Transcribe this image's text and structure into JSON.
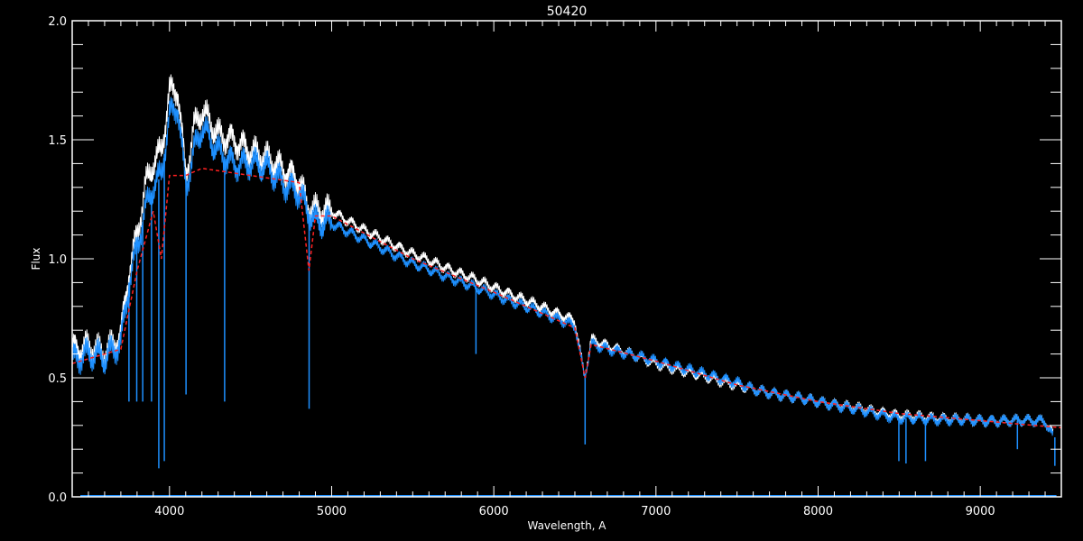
{
  "chart_data": {
    "type": "line",
    "title": "50420",
    "xlabel": "Wavelength, A",
    "ylabel": "Flux",
    "xlim": [
      3400,
      9500
    ],
    "ylim": [
      0.0,
      2.0
    ],
    "xticks": [
      4000,
      5000,
      6000,
      7000,
      8000,
      9000
    ],
    "xtick_labels": [
      "4000",
      "5000",
      "6000",
      "7000",
      "8000",
      "9000"
    ],
    "yticks": [
      0.0,
      0.5,
      1.0,
      1.5,
      2.0
    ],
    "ytick_labels": [
      "0.0",
      "0.5",
      "1.0",
      "1.5",
      "2.0"
    ],
    "grid": false,
    "background": "#000000",
    "series": [
      {
        "color": "#ffffff",
        "x": [
          3400,
          3500,
          3600,
          3700,
          3750,
          3800,
          3850,
          3900,
          3950,
          4000,
          4050,
          4100,
          4150,
          4200,
          4300,
          4400,
          4500,
          4600,
          4700,
          4800,
          4850,
          4900,
          5000,
          5200,
          5500,
          6000,
          6500,
          6560,
          6600,
          7000,
          7500,
          7600,
          8000,
          8500,
          9000,
          9400,
          9450
        ],
        "y": [
          0.62,
          0.63,
          0.6,
          0.68,
          0.95,
          1.1,
          1.3,
          1.4,
          1.45,
          1.7,
          1.72,
          1.35,
          1.55,
          1.62,
          1.52,
          1.5,
          1.45,
          1.42,
          1.38,
          1.33,
          1.22,
          1.2,
          1.2,
          1.12,
          1.02,
          0.88,
          0.74,
          0.5,
          0.66,
          0.56,
          0.47,
          0.45,
          0.4,
          0.34,
          0.32,
          0.32,
          0.26
        ]
      },
      {
        "color": "#1e90ff",
        "x": [
          3400,
          3500,
          3600,
          3700,
          3750,
          3800,
          3850,
          3900,
          3950,
          4000,
          4050,
          4100,
          4150,
          4200,
          4300,
          4400,
          4500,
          4600,
          4700,
          4800,
          4850,
          4900,
          5000,
          5200,
          5500,
          6000,
          6500,
          6560,
          6600,
          7000,
          7500,
          7600,
          8000,
          8500,
          9000,
          9400,
          9450
        ],
        "y": [
          0.58,
          0.6,
          0.58,
          0.65,
          0.9,
          1.05,
          1.2,
          1.3,
          1.35,
          1.6,
          1.65,
          1.3,
          1.45,
          1.55,
          1.45,
          1.4,
          1.4,
          1.38,
          1.32,
          1.28,
          1.2,
          1.15,
          1.15,
          1.08,
          0.98,
          0.85,
          0.72,
          0.5,
          0.64,
          0.57,
          0.48,
          0.45,
          0.4,
          0.33,
          0.32,
          0.32,
          0.25
        ],
        "absorption_lines": [
          {
            "x": 3750,
            "y": 0.4
          },
          {
            "x": 3798,
            "y": 0.4
          },
          {
            "x": 3835,
            "y": 0.4
          },
          {
            "x": 3889,
            "y": 0.4
          },
          {
            "x": 3934,
            "y": 0.12
          },
          {
            "x": 3968,
            "y": 0.15
          },
          {
            "x": 4102,
            "y": 0.43
          },
          {
            "x": 4340,
            "y": 0.4
          },
          {
            "x": 4861,
            "y": 0.37
          },
          {
            "x": 5890,
            "y": 0.6
          },
          {
            "x": 6563,
            "y": 0.22
          },
          {
            "x": 8498,
            "y": 0.15
          },
          {
            "x": 8542,
            "y": 0.14
          },
          {
            "x": 8662,
            "y": 0.15
          },
          {
            "x": 9229,
            "y": 0.2
          },
          {
            "x": 9460,
            "y": 0.13
          }
        ]
      },
      {
        "color": "#ff2020",
        "style": "dashed",
        "x": [
          3400,
          3700,
          3800,
          3900,
          3950,
          4000,
          4100,
          4200,
          4500,
          4800,
          4860,
          4900,
          5000,
          5500,
          6000,
          6500,
          6563,
          6600,
          7000,
          7500,
          8000,
          8500,
          9000,
          9500
        ],
        "y": [
          0.56,
          0.62,
          0.95,
          1.2,
          1.0,
          1.35,
          1.35,
          1.38,
          1.35,
          1.32,
          0.95,
          1.18,
          1.18,
          1.0,
          0.86,
          0.71,
          0.5,
          0.64,
          0.57,
          0.47,
          0.4,
          0.35,
          0.32,
          0.29
        ]
      },
      {
        "color": "#1e90ff",
        "x": [
          3450,
          9470
        ],
        "y": [
          0.005,
          0.005
        ]
      }
    ]
  }
}
